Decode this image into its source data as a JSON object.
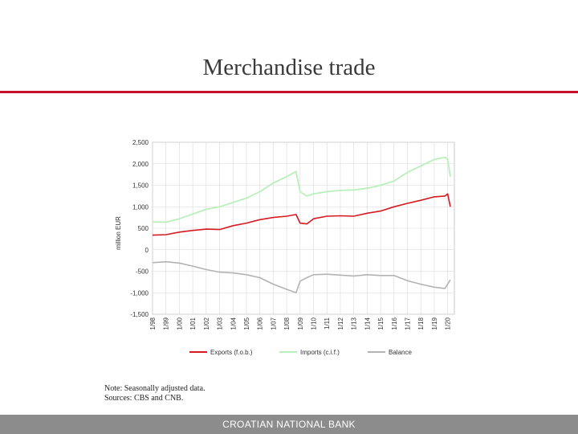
{
  "slide": {
    "title": "Merchandise trade",
    "note_line1": "Note: Seasonally adjusted data.",
    "note_line2": "Sources: CBS and CNB.",
    "footer": "CROATIAN NATIONAL BANK"
  },
  "colors": {
    "accent": "#c8102e",
    "exports": "#d71920",
    "imports": "#b9f0b9",
    "balance": "#b3b3b3",
    "footer": "#8c8c8c"
  },
  "chart_data": {
    "type": "line",
    "ylabel": "million EUR",
    "ylim": [
      -1500,
      2500
    ],
    "yticks": [
      2500,
      2000,
      1500,
      1000,
      500,
      0,
      -500,
      -1000,
      -1500
    ],
    "ytick_labels": [
      "2,500",
      "2,000",
      "1,500",
      "1,000",
      "500",
      "0",
      "-500",
      "-1,000",
      "-1,500"
    ],
    "xlim": [
      1998,
      2020.5
    ],
    "xticks": [
      1998,
      1999,
      2000,
      2001,
      2002,
      2003,
      2004,
      2005,
      2006,
      2007,
      2008,
      2009,
      2010,
      2011,
      2012,
      2013,
      2014,
      2015,
      2016,
      2017,
      2018,
      2019,
      2020
    ],
    "xtick_labels": [
      "1/98",
      "1/99",
      "1/00",
      "1/01",
      "1/02",
      "1/03",
      "1/04",
      "1/05",
      "1/06",
      "1/07",
      "1/08",
      "1/09",
      "1/10",
      "1/11",
      "1/12",
      "1/13",
      "1/14",
      "1/15",
      "1/16",
      "1/17",
      "1/18",
      "1/19",
      "1/20"
    ],
    "grid": true,
    "legend_position": "bottom",
    "series": [
      {
        "name": "Exports (f.o.b.)",
        "x": [
          1998,
          1999,
          2000,
          2001,
          2002,
          2003,
          2004,
          2005,
          2006,
          2007,
          2008,
          2008.7,
          2009,
          2009.5,
          2010,
          2011,
          2012,
          2013,
          2014,
          2015,
          2016,
          2017,
          2018,
          2019,
          2019.8,
          2020,
          2020.2
        ],
        "y": [
          340,
          350,
          410,
          450,
          480,
          470,
          560,
          620,
          700,
          750,
          780,
          820,
          620,
          600,
          720,
          780,
          790,
          780,
          850,
          900,
          1000,
          1080,
          1150,
          1230,
          1250,
          1300,
          1000
        ]
      },
      {
        "name": "Imports (c.i.f.)",
        "x": [
          1998,
          1999,
          2000,
          2001,
          2002,
          2003,
          2004,
          2005,
          2006,
          2007,
          2008,
          2008.7,
          2009,
          2009.5,
          2010,
          2011,
          2012,
          2013,
          2014,
          2015,
          2016,
          2017,
          2018,
          2019,
          2019.8,
          2020,
          2020.2
        ],
        "y": [
          650,
          640,
          720,
          830,
          940,
          1000,
          1100,
          1200,
          1350,
          1550,
          1700,
          1820,
          1350,
          1250,
          1300,
          1350,
          1380,
          1390,
          1430,
          1500,
          1600,
          1800,
          1950,
          2100,
          2150,
          2100,
          1700
        ]
      },
      {
        "name": "Balance",
        "x": [
          1998,
          1999,
          2000,
          2001,
          2002,
          2003,
          2004,
          2005,
          2006,
          2007,
          2008,
          2008.7,
          2009,
          2009.5,
          2010,
          2011,
          2012,
          2013,
          2014,
          2015,
          2016,
          2017,
          2018,
          2019,
          2019.8,
          2020,
          2020.2
        ],
        "y": [
          -300,
          -280,
          -310,
          -380,
          -460,
          -520,
          -540,
          -580,
          -650,
          -800,
          -920,
          -1000,
          -730,
          -650,
          -580,
          -570,
          -590,
          -610,
          -580,
          -600,
          -600,
          -720,
          -800,
          -870,
          -900,
          -800,
          -700
        ]
      }
    ]
  }
}
